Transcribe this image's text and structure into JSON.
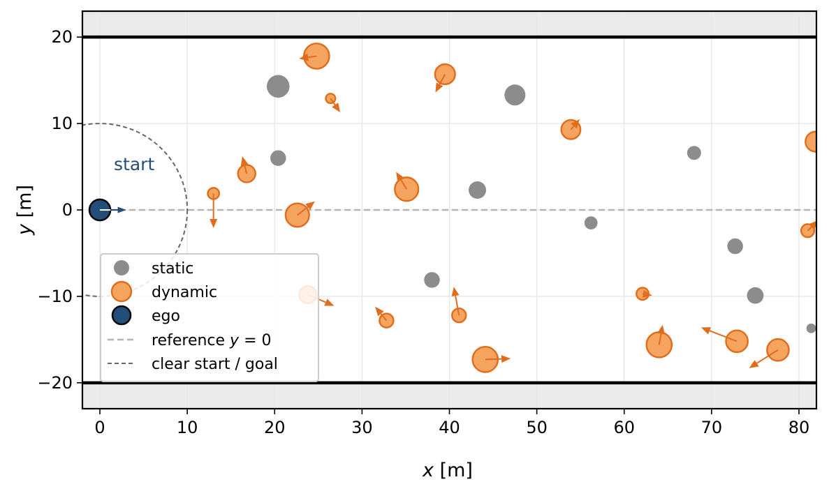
{
  "chart_data": {
    "type": "scatter",
    "xlabel_var": "x",
    "xlabel_unit": "[m]",
    "ylabel_var": "y",
    "ylabel_unit": "[m]",
    "xlim": [
      -2,
      82
    ],
    "ylim": [
      -23,
      23
    ],
    "x_ticks": [
      0,
      10,
      20,
      30,
      40,
      50,
      60,
      70,
      80
    ],
    "y_ticks": [
      20,
      10,
      0,
      -10,
      -20
    ],
    "y_tick_labels": [
      "20",
      "10",
      "0",
      "−10",
      "−20"
    ],
    "road_boundaries_y": [
      20,
      -20
    ],
    "grid": true,
    "colors": {
      "static": "#8c8c8c",
      "dynamic_fill": "#f4a45f",
      "dynamic_edge": "#e06c1c",
      "ego_fill": "#244e7a",
      "ego_edge": "#0a0a0a",
      "reference": "#b5b5b5",
      "clear_zone": "#666666",
      "annotation": "#244e7a",
      "out_of_road": "#ebebeb"
    },
    "static_obstacles": [
      {
        "x": 20.4,
        "y": 14.3,
        "r": 1.3
      },
      {
        "x": 20.4,
        "y": 6.0,
        "r": 0.9
      },
      {
        "x": 47.5,
        "y": 13.3,
        "r": 1.2
      },
      {
        "x": 43.2,
        "y": 2.3,
        "r": 1.0
      },
      {
        "x": 56.2,
        "y": -1.5,
        "r": 0.75
      },
      {
        "x": 38.0,
        "y": -8.1,
        "r": 0.9
      },
      {
        "x": 68.0,
        "y": 6.6,
        "r": 0.8
      },
      {
        "x": 72.7,
        "y": -4.2,
        "r": 0.9
      },
      {
        "x": 75.0,
        "y": -9.9,
        "r": 0.95
      },
      {
        "x": 81.4,
        "y": -13.7,
        "r": 0.55
      }
    ],
    "dynamic_obstacles": [
      {
        "x": 24.8,
        "y": 17.8,
        "r": 1.45,
        "dx": -2.0,
        "dy": -0.3
      },
      {
        "x": 39.5,
        "y": 15.7,
        "r": 1.15,
        "dx": -1.1,
        "dy": -2.1
      },
      {
        "x": 26.4,
        "y": 12.9,
        "r": 0.55,
        "dx": 1.1,
        "dy": -1.6
      },
      {
        "x": 53.9,
        "y": 9.3,
        "r": 1.1,
        "dx": 1.0,
        "dy": 1.2
      },
      {
        "x": 16.8,
        "y": 4.2,
        "r": 1.0,
        "dx": -0.5,
        "dy": 2.0
      },
      {
        "x": 35.1,
        "y": 2.4,
        "r": 1.35,
        "dx": -1.2,
        "dy": 2.0
      },
      {
        "x": 13.0,
        "y": 1.9,
        "r": 0.65,
        "dx": 0.0,
        "dy": -4.0
      },
      {
        "x": 22.6,
        "y": -0.6,
        "r": 1.35,
        "dx": 2.0,
        "dy": 1.6
      },
      {
        "x": 23.8,
        "y": -9.8,
        "r": 1.0,
        "dx": 3.0,
        "dy": -1.3
      },
      {
        "x": 32.8,
        "y": -12.8,
        "r": 0.8,
        "dx": -1.3,
        "dy": 1.6
      },
      {
        "x": 41.1,
        "y": -12.2,
        "r": 0.8,
        "dx": -0.6,
        "dy": 3.3
      },
      {
        "x": 44.1,
        "y": -17.3,
        "r": 1.45,
        "dx": 2.9,
        "dy": 0.1
      },
      {
        "x": 62.1,
        "y": -9.7,
        "r": 0.7,
        "dx": 1.1,
        "dy": -0.2
      },
      {
        "x": 64.0,
        "y": -15.6,
        "r": 1.45,
        "dx": 0.4,
        "dy": 2.3
      },
      {
        "x": 72.9,
        "y": -15.2,
        "r": 1.25,
        "dx": -4.1,
        "dy": 1.6
      },
      {
        "x": 77.6,
        "y": -16.2,
        "r": 1.25,
        "dx": -3.3,
        "dy": -2.1
      },
      {
        "x": 81.0,
        "y": -2.4,
        "r": 0.75,
        "dx": 1.2,
        "dy": 1.2
      },
      {
        "x": 81.9,
        "y": 7.9,
        "r": 1.15,
        "dx": 0.0,
        "dy": 0.0
      }
    ],
    "ego": {
      "x": 0.0,
      "y": 0.0,
      "r": 1.2,
      "dx": 3.0,
      "dy": 0.0
    },
    "clear_zone_radius": 10,
    "start_label": "start",
    "start_label_pos": {
      "x": 1.6,
      "y": 4.6
    },
    "legend": {
      "placement": "lower-left",
      "items": [
        {
          "key": "static",
          "label": "static"
        },
        {
          "key": "dynamic",
          "label": "dynamic"
        },
        {
          "key": "ego",
          "label": "ego"
        },
        {
          "key": "reference",
          "label_prefix": "reference ",
          "label_math": "y",
          "label_suffix": " = 0"
        },
        {
          "key": "clear",
          "label": "clear start / goal"
        }
      ]
    }
  }
}
